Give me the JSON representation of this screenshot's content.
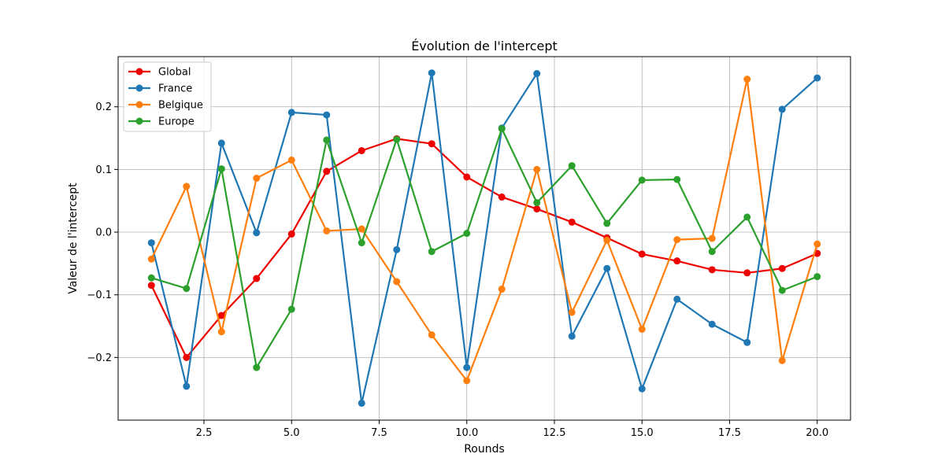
{
  "chart_data": {
    "type": "line",
    "title": "Évolution de l'intercept",
    "xlabel": "Rounds",
    "ylabel": "Valeur de l'intercept",
    "xlim": [
      0.05,
      20.95
    ],
    "ylim": [
      -0.3,
      0.28
    ],
    "xticks": [
      2.5,
      5.0,
      7.5,
      10.0,
      12.5,
      15.0,
      17.5,
      20.0
    ],
    "xtick_labels": [
      "2.5",
      "5.0",
      "7.5",
      "10.0",
      "12.5",
      "15.0",
      "17.5",
      "20.0"
    ],
    "yticks": [
      -0.2,
      -0.1,
      0.0,
      0.1,
      0.2
    ],
    "ytick_labels": [
      "−0.2",
      "−0.1",
      "0.0",
      "0.1",
      "0.2"
    ],
    "grid": true,
    "legend_position": "top-left",
    "x": [
      1,
      2,
      3,
      4,
      5,
      6,
      7,
      8,
      9,
      10,
      11,
      12,
      13,
      14,
      15,
      16,
      17,
      18,
      19,
      20
    ],
    "series": [
      {
        "name": "Global",
        "color": "#ee0000",
        "values": [
          -0.085,
          -0.2,
          -0.133,
          -0.074,
          -0.003,
          0.097,
          0.13,
          0.149,
          0.141,
          0.088,
          0.056,
          0.037,
          0.016,
          -0.009,
          -0.035,
          -0.046,
          -0.06,
          -0.065,
          -0.058,
          -0.034
        ]
      },
      {
        "name": "France",
        "color": "#1f77b4",
        "values": [
          -0.017,
          -0.246,
          0.142,
          -0.001,
          0.191,
          0.187,
          -0.273,
          -0.028,
          0.254,
          -0.216,
          0.166,
          0.253,
          -0.166,
          -0.058,
          -0.25,
          -0.107,
          -0.147,
          -0.176,
          0.196,
          0.246
        ]
      },
      {
        "name": "Belgique",
        "color": "#ff7f0e",
        "values": [
          -0.043,
          0.073,
          -0.159,
          0.086,
          0.115,
          0.002,
          0.005,
          -0.079,
          -0.164,
          -0.237,
          -0.091,
          0.1,
          -0.128,
          -0.013,
          -0.155,
          -0.012,
          -0.01,
          0.244,
          -0.205,
          -0.019
        ]
      },
      {
        "name": "Europe",
        "color": "#2ca02c",
        "values": [
          -0.073,
          -0.09,
          0.101,
          -0.216,
          -0.123,
          0.147,
          -0.017,
          0.148,
          -0.031,
          -0.002,
          0.165,
          0.047,
          0.106,
          0.014,
          0.083,
          0.084,
          -0.031,
          0.024,
          -0.093,
          -0.071
        ]
      }
    ]
  }
}
